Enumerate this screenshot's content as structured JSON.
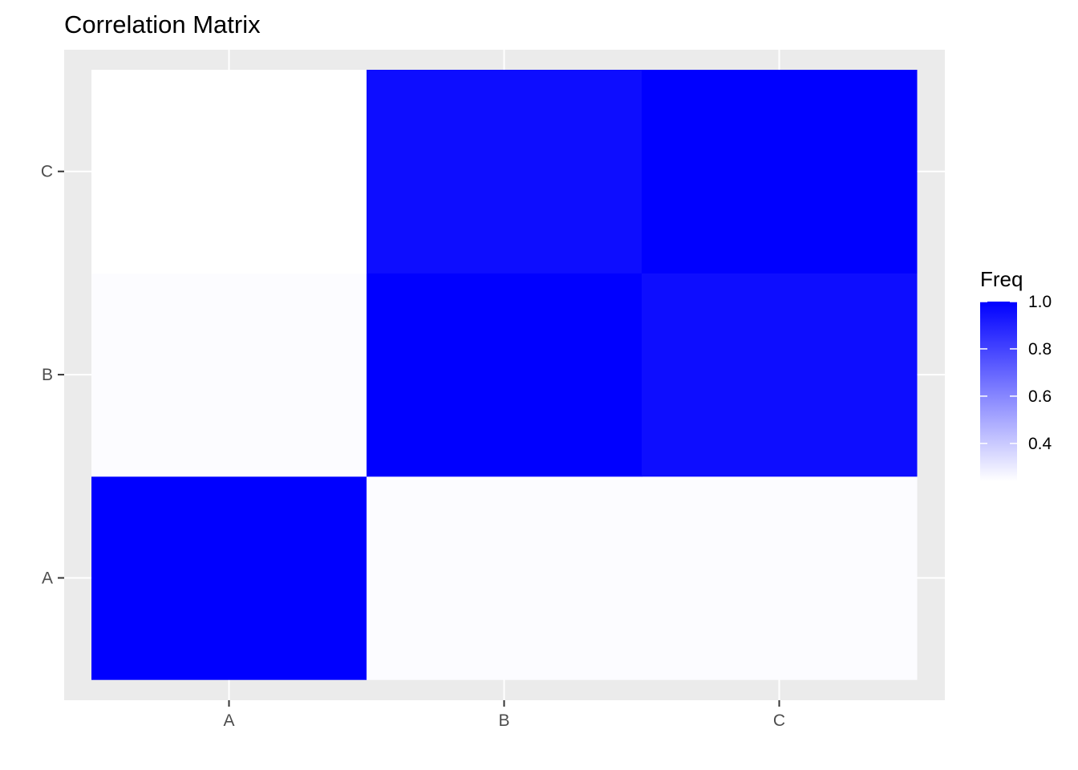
{
  "chart_data": {
    "type": "heatmap",
    "title": "Correlation Matrix",
    "xlabel": "",
    "ylabel": "",
    "x_categories": [
      "A",
      "B",
      "C"
    ],
    "y_categories": [
      "A",
      "B",
      "C"
    ],
    "cells": [
      {
        "x": "A",
        "y": "A",
        "value": 1.0
      },
      {
        "x": "B",
        "y": "A",
        "value": 0.25
      },
      {
        "x": "C",
        "y": "A",
        "value": 0.25
      },
      {
        "x": "A",
        "y": "B",
        "value": 0.25
      },
      {
        "x": "B",
        "y": "B",
        "value": 1.0
      },
      {
        "x": "C",
        "y": "B",
        "value": 0.96
      },
      {
        "x": "A",
        "y": "C",
        "value": 0.24
      },
      {
        "x": "B",
        "y": "C",
        "value": 0.96
      },
      {
        "x": "C",
        "y": "C",
        "value": 1.0
      }
    ],
    "legend": {
      "title": "Freq",
      "position": "right",
      "ticks": [
        1.0,
        0.8,
        0.6,
        0.4
      ],
      "tick_labels": [
        "1.0",
        "0.8",
        "0.6",
        "0.4"
      ],
      "range": [
        0.24,
        1.0
      ]
    },
    "colors": {
      "low": "#ffffff",
      "high": "#0000ff",
      "panel_background": "#ebebeb",
      "grid": "#ffffff",
      "tick_text": "#4d4d4d"
    },
    "grid": true
  }
}
